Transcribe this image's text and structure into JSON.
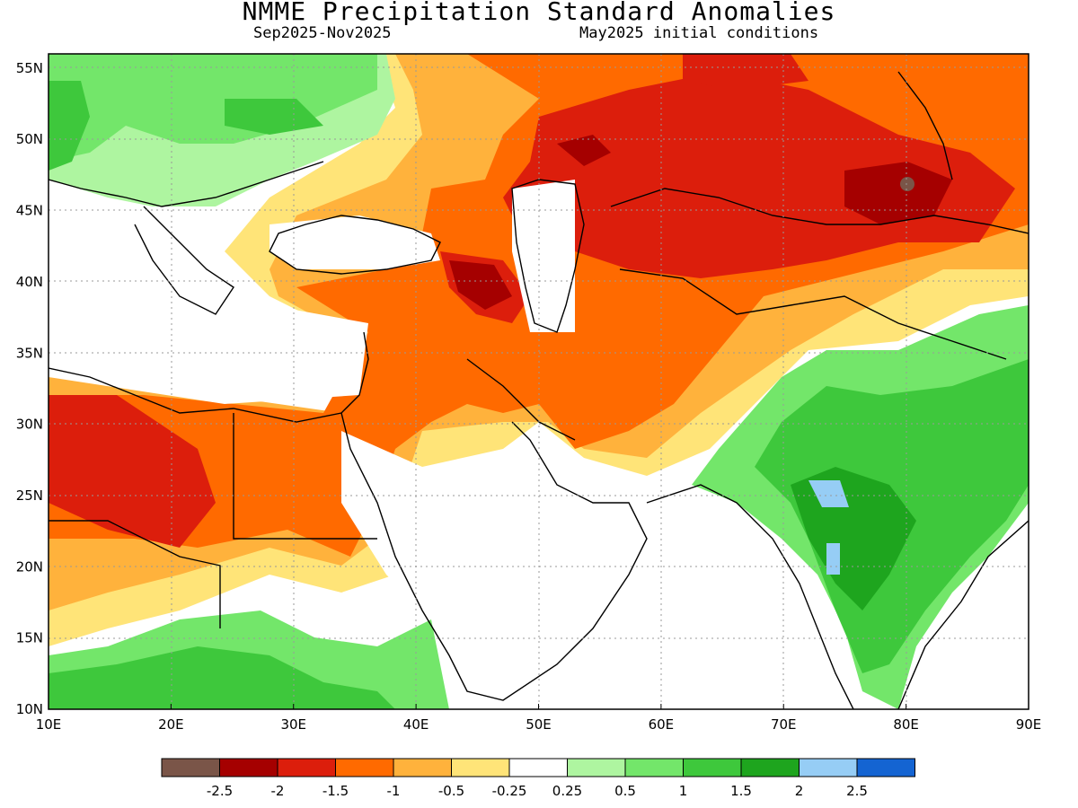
{
  "title": "NMME Precipitation Standard Anomalies",
  "subtitle_left": "Sep2025-Nov2025",
  "subtitle_right": "May2025 initial conditions",
  "map": {
    "lon_range": [
      10,
      90
    ],
    "lat_range": [
      10,
      56
    ],
    "lon_ticks": [
      "10E",
      "20E",
      "30E",
      "40E",
      "50E",
      "60E",
      "70E",
      "80E",
      "90E"
    ],
    "lat_ticks": [
      "10N",
      "15N",
      "20N",
      "25N",
      "30N",
      "35N",
      "40N",
      "45N",
      "50N",
      "55N"
    ]
  },
  "legend": {
    "colors": [
      "#7a5548",
      "#a50000",
      "#dc1e0c",
      "#ff6a00",
      "#ffb23c",
      "#ffe478",
      "#ffffff",
      "#aef5a0",
      "#73e66a",
      "#3ec83c",
      "#1ea51e",
      "#96cdf5",
      "#1464d2"
    ],
    "labels": [
      "-2.5",
      "-2",
      "-1.5",
      "-1",
      "-0.5",
      "-0.25",
      "0.25",
      "0.5",
      "1",
      "1.5",
      "2",
      "2.5"
    ]
  }
}
